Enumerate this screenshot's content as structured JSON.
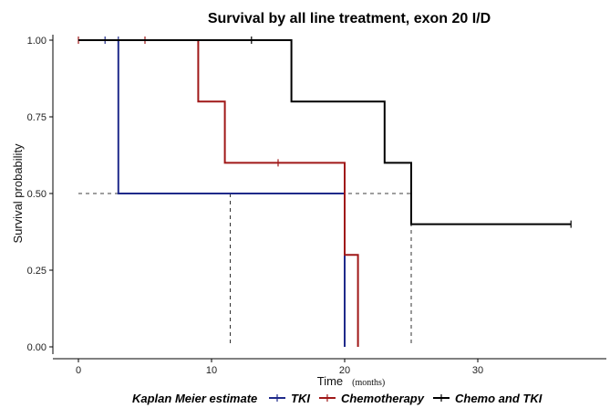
{
  "chart_data": {
    "type": "line",
    "subtype": "step",
    "title": "Survival by all line treatment, exon 20 I/D",
    "xlabel": "Time",
    "xlabel_unit": "(months)",
    "ylabel": "Survival probability",
    "xlim": [
      -4,
      40
    ],
    "ylim": [
      0,
      1
    ],
    "x_ticks": [
      0,
      10,
      20,
      30
    ],
    "x_tick_labels": [
      "0",
      "10",
      "20",
      "30"
    ],
    "y_ticks": [
      0,
      0.25,
      0.5,
      0.75,
      1.0
    ],
    "y_tick_labels": [
      "0.00",
      "0.25",
      "0.50",
      "0.75",
      "1.00"
    ],
    "grid": false,
    "legend_title": "Kaplan Meier estimate",
    "legend_position": "bottom",
    "series": [
      {
        "name": "TKI",
        "color": "#1f2a8a",
        "steps": [
          [
            0,
            1.0
          ],
          [
            3,
            0.5
          ],
          [
            20,
            0.3
          ],
          [
            20,
            0.0
          ]
        ],
        "censors": [
          [
            2,
            1.0
          ],
          [
            3,
            1.0
          ]
        ]
      },
      {
        "name": "Chemotherapy",
        "color": "#a01818",
        "steps": [
          [
            0,
            1.0
          ],
          [
            9,
            0.8
          ],
          [
            11,
            0.6
          ],
          [
            20,
            0.3
          ],
          [
            21,
            0.0
          ]
        ],
        "censors": [
          [
            0,
            1.0
          ],
          [
            5,
            1.0
          ],
          [
            15,
            0.6
          ]
        ]
      },
      {
        "name": "Chemo and TKI",
        "color": "#000000",
        "steps": [
          [
            0,
            1.0
          ],
          [
            16,
            0.8
          ],
          [
            23,
            0.6
          ],
          [
            25,
            0.4
          ],
          [
            37,
            0.4
          ]
        ],
        "censors": [
          [
            13,
            1.0
          ],
          [
            37,
            0.4
          ]
        ]
      }
    ],
    "median_lines": [
      {
        "x": 11.4,
        "y": 0.5
      },
      {
        "x": 20,
        "y": 0.5
      },
      {
        "x": 25,
        "y": 0.5
      }
    ]
  }
}
